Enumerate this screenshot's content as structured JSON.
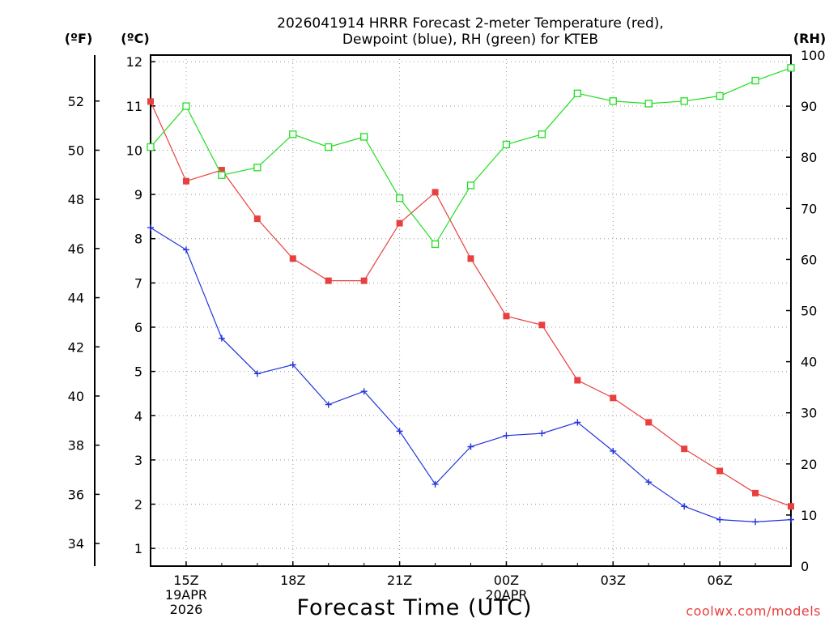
{
  "chart_data": {
    "type": "line",
    "title_line1": "2026041914 HRRR Forecast 2-meter Temperature (red),",
    "title_line2": "Dewpoint (blue), RH (green) for KTEB",
    "xlabel": "Forecast Time (UTC)",
    "credit": "coolwx.com/models",
    "units": {
      "fahrenheit": "(ºF)",
      "celsius": "(ºC)",
      "rh": "(RH)"
    },
    "x_hours": [
      14,
      15,
      16,
      17,
      18,
      19,
      20,
      21,
      22,
      23,
      24,
      25,
      26,
      27,
      28,
      29,
      30,
      31,
      32
    ],
    "x_ticks": [
      {
        "hour": 15,
        "label": "15Z",
        "sub1": "19APR",
        "sub2": "2026"
      },
      {
        "hour": 18,
        "label": "18Z",
        "sub1": "",
        "sub2": ""
      },
      {
        "hour": 21,
        "label": "21Z",
        "sub1": "",
        "sub2": ""
      },
      {
        "hour": 24,
        "label": "00Z",
        "sub1": "20APR",
        "sub2": ""
      },
      {
        "hour": 27,
        "label": "03Z",
        "sub1": "",
        "sub2": ""
      },
      {
        "hour": 30,
        "label": "06Z",
        "sub1": "",
        "sub2": ""
      }
    ],
    "xlim": [
      14,
      32
    ],
    "celsius_axis": {
      "ylim": [
        0.6,
        12.15
      ],
      "ticks": [
        1,
        2,
        3,
        4,
        5,
        6,
        7,
        8,
        9,
        10,
        11,
        12
      ]
    },
    "fahrenheit_axis": {
      "ticks": [
        34,
        36,
        38,
        40,
        42,
        44,
        46,
        48,
        50,
        52
      ]
    },
    "rh_axis": {
      "ylim": [
        0,
        100
      ],
      "ticks": [
        0,
        10,
        20,
        30,
        40,
        50,
        60,
        70,
        80,
        90,
        100
      ]
    },
    "series": [
      {
        "name": "Temperature",
        "color": "#e8403f",
        "marker": "filled-square",
        "axis": "celsius",
        "values": [
          11.1,
          9.3,
          9.55,
          8.45,
          7.55,
          7.05,
          7.05,
          8.35,
          9.05,
          7.55,
          6.25,
          6.05,
          4.8,
          4.4,
          3.85,
          3.25,
          2.75,
          2.25,
          1.95
        ]
      },
      {
        "name": "Dewpoint",
        "color": "#2233dd",
        "marker": "plus",
        "axis": "celsius",
        "values": [
          8.25,
          7.75,
          5.75,
          4.95,
          5.15,
          4.25,
          4.55,
          3.65,
          2.45,
          3.3,
          3.55,
          3.6,
          3.85,
          3.2,
          2.5,
          1.95,
          1.65,
          1.6,
          1.65
        ]
      },
      {
        "name": "RH",
        "color": "#22dd22",
        "marker": "open-square",
        "axis": "rh",
        "values": [
          82,
          90,
          76.5,
          78,
          84.5,
          82,
          84,
          72,
          63,
          74.5,
          82.5,
          84.5,
          92.5,
          91,
          90.5,
          91,
          92,
          95,
          97.5
        ]
      }
    ]
  }
}
